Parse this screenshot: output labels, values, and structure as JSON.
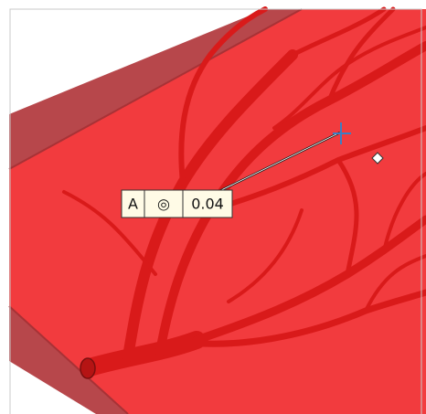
{
  "callout": {
    "datum": "A",
    "symbol": "◎",
    "tolerance": "0.04"
  }
}
